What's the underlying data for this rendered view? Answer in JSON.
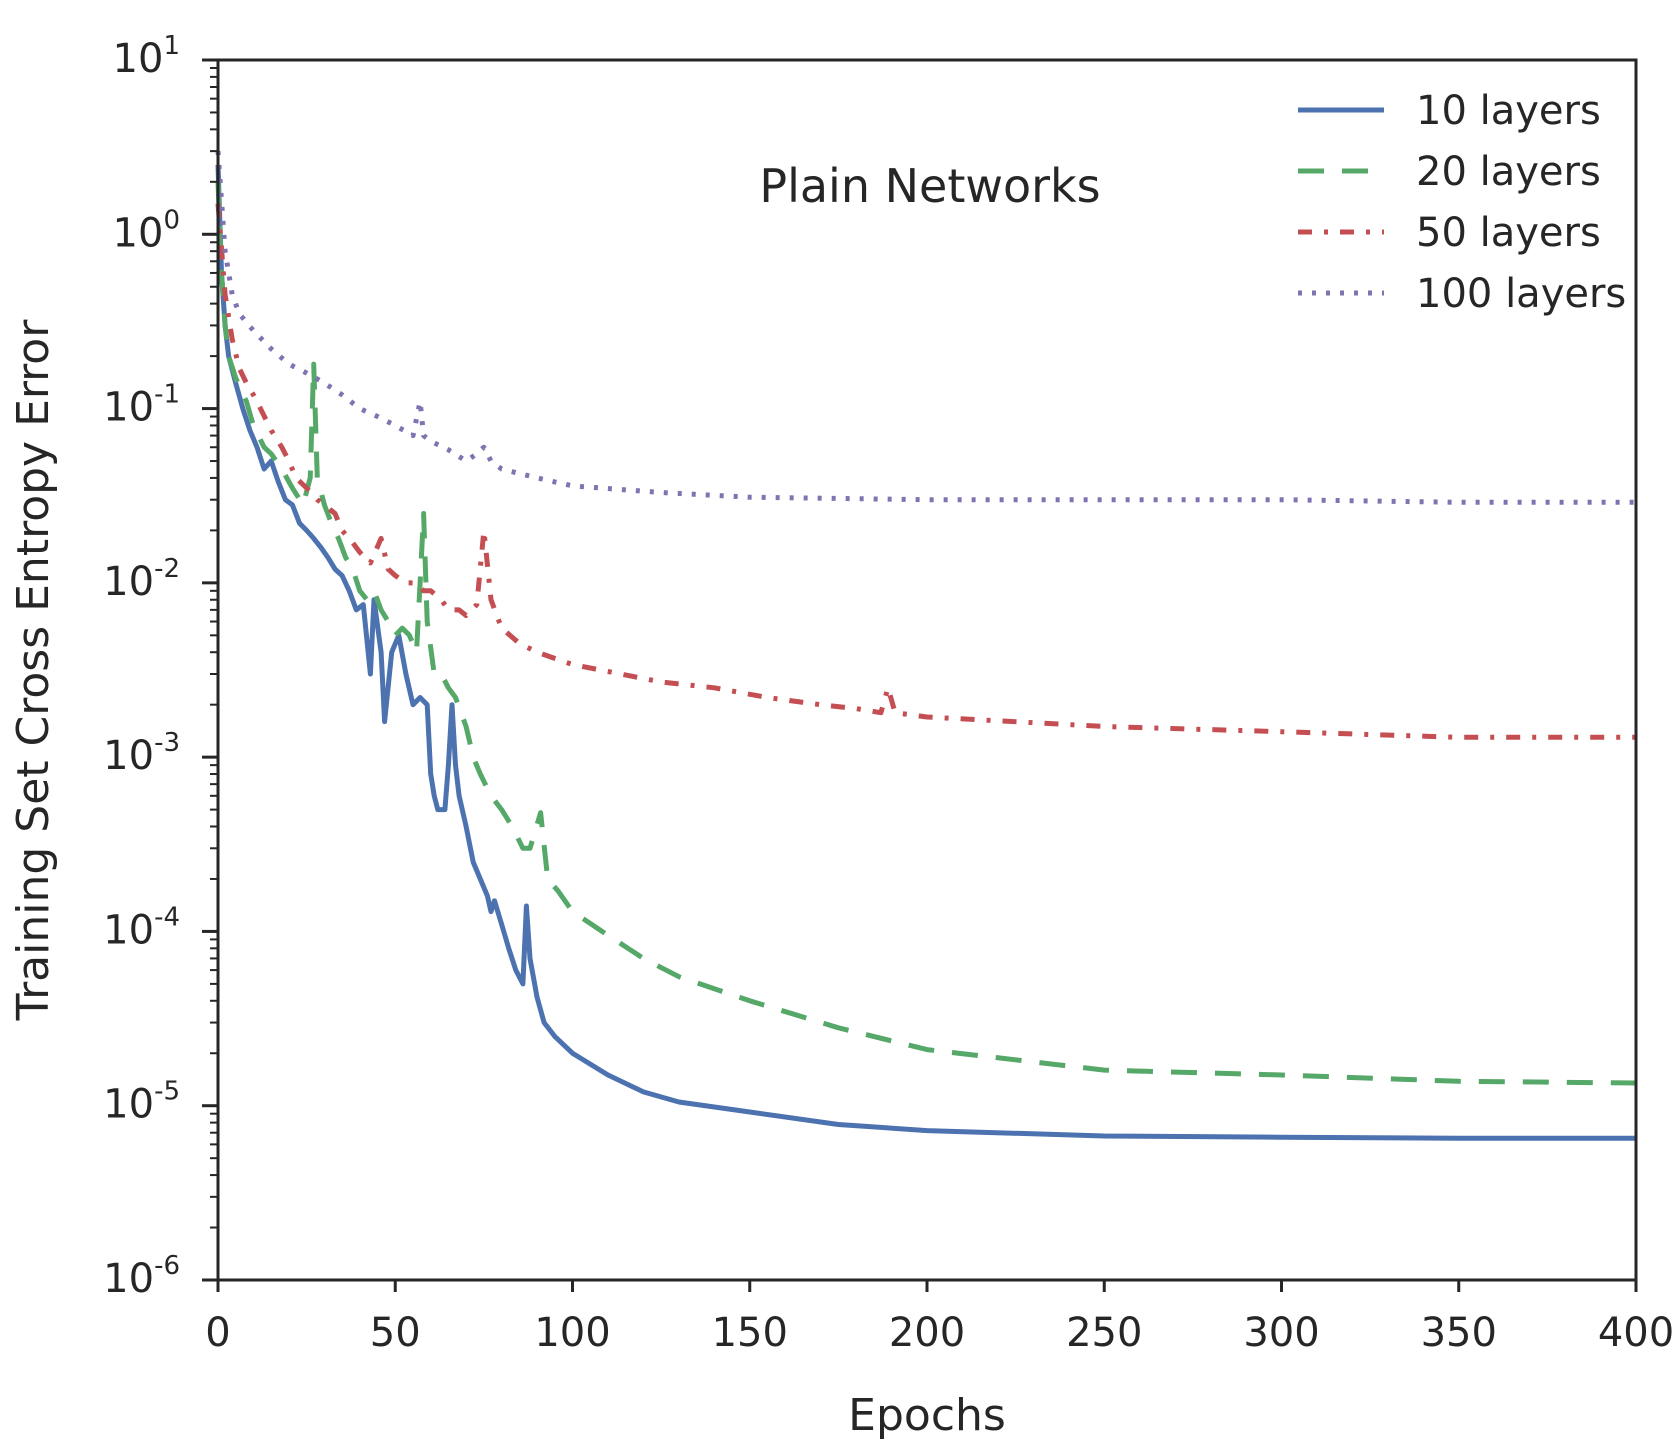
{
  "chart_data": {
    "type": "line",
    "annotation": "Plain Networks",
    "xlabel": "Epochs",
    "ylabel": "Training Set Cross Entropy Error",
    "xlim": [
      0,
      400
    ],
    "ylim": [
      1e-06,
      10
    ],
    "yscale": "log",
    "xticks": [
      0,
      50,
      100,
      150,
      200,
      250,
      300,
      350,
      400
    ],
    "yticks": [
      {
        "base": "10",
        "exp": "1",
        "value": 10
      },
      {
        "base": "10",
        "exp": "0",
        "value": 1
      },
      {
        "base": "10",
        "exp": "-1",
        "value": 0.1
      },
      {
        "base": "10",
        "exp": "-2",
        "value": 0.01
      },
      {
        "base": "10",
        "exp": "-3",
        "value": 0.001
      },
      {
        "base": "10",
        "exp": "-4",
        "value": 0.0001
      },
      {
        "base": "10",
        "exp": "-5",
        "value": 1e-05
      },
      {
        "base": "10",
        "exp": "-6",
        "value": 1e-06
      }
    ],
    "grid": false,
    "legend": "top-right",
    "series": [
      {
        "name": "10 layers",
        "color": "#4c72b0",
        "style": "solid",
        "points": [
          [
            0,
            2.5
          ],
          [
            1,
            0.6
          ],
          [
            2,
            0.3
          ],
          [
            3,
            0.2
          ],
          [
            5,
            0.14
          ],
          [
            7,
            0.1
          ],
          [
            9,
            0.075
          ],
          [
            11,
            0.06
          ],
          [
            13,
            0.045
          ],
          [
            15,
            0.05
          ],
          [
            17,
            0.038
          ],
          [
            19,
            0.03
          ],
          [
            21,
            0.028
          ],
          [
            23,
            0.022
          ],
          [
            25,
            0.02
          ],
          [
            27,
            0.018
          ],
          [
            29,
            0.016
          ],
          [
            31,
            0.014
          ],
          [
            33,
            0.012
          ],
          [
            35,
            0.011
          ],
          [
            37,
            0.009
          ],
          [
            39,
            0.007
          ],
          [
            41,
            0.0075
          ],
          [
            43,
            0.003
          ],
          [
            44,
            0.008
          ],
          [
            46,
            0.004
          ],
          [
            47,
            0.0016
          ],
          [
            49,
            0.004
          ],
          [
            51,
            0.005
          ],
          [
            53,
            0.003
          ],
          [
            55,
            0.002
          ],
          [
            57,
            0.0022
          ],
          [
            59,
            0.002
          ],
          [
            60,
            0.0008
          ],
          [
            61,
            0.0006
          ],
          [
            62,
            0.0005
          ],
          [
            64,
            0.0005
          ],
          [
            65,
            0.0009
          ],
          [
            66,
            0.002
          ],
          [
            67,
            0.0009
          ],
          [
            68,
            0.0006
          ],
          [
            70,
            0.0004
          ],
          [
            72,
            0.00025
          ],
          [
            74,
            0.0002
          ],
          [
            76,
            0.00016
          ],
          [
            77,
            0.00013
          ],
          [
            78,
            0.00015
          ],
          [
            80,
            0.00011
          ],
          [
            82,
            8e-05
          ],
          [
            84,
            6e-05
          ],
          [
            86,
            5e-05
          ],
          [
            87,
            0.00014
          ],
          [
            88,
            7e-05
          ],
          [
            90,
            4.2e-05
          ],
          [
            92,
            3e-05
          ],
          [
            95,
            2.5e-05
          ],
          [
            100,
            2e-05
          ],
          [
            110,
            1.5e-05
          ],
          [
            120,
            1.2e-05
          ],
          [
            130,
            1.05e-05
          ],
          [
            150,
            9.2e-06
          ],
          [
            175,
            7.8e-06
          ],
          [
            200,
            7.2e-06
          ],
          [
            250,
            6.7e-06
          ],
          [
            300,
            6.6e-06
          ],
          [
            350,
            6.5e-06
          ],
          [
            400,
            6.5e-06
          ]
        ]
      },
      {
        "name": "20 layers",
        "color": "#55a868",
        "style": "dashed",
        "points": [
          [
            0,
            2.0
          ],
          [
            1,
            0.6
          ],
          [
            2,
            0.3
          ],
          [
            3,
            0.2
          ],
          [
            5,
            0.15
          ],
          [
            8,
            0.11
          ],
          [
            10,
            0.08
          ],
          [
            13,
            0.06
          ],
          [
            15,
            0.055
          ],
          [
            18,
            0.045
          ],
          [
            21,
            0.035
          ],
          [
            24,
            0.028
          ],
          [
            26,
            0.04
          ],
          [
            27,
            0.18
          ],
          [
            28,
            0.04
          ],
          [
            30,
            0.028
          ],
          [
            32,
            0.022
          ],
          [
            34,
            0.018
          ],
          [
            36,
            0.014
          ],
          [
            38,
            0.012
          ],
          [
            40,
            0.009
          ],
          [
            42,
            0.008
          ],
          [
            44,
            0.009
          ],
          [
            46,
            0.007
          ],
          [
            48,
            0.006
          ],
          [
            50,
            0.005
          ],
          [
            52,
            0.0055
          ],
          [
            54,
            0.005
          ],
          [
            56,
            0.004
          ],
          [
            57,
            0.01
          ],
          [
            58,
            0.025
          ],
          [
            59,
            0.006
          ],
          [
            61,
            0.003
          ],
          [
            63,
            0.003
          ],
          [
            65,
            0.0025
          ],
          [
            67,
            0.0022
          ],
          [
            70,
            0.0015
          ],
          [
            72,
            0.001
          ],
          [
            74,
            0.0008
          ],
          [
            77,
            0.0006
          ],
          [
            80,
            0.0005
          ],
          [
            83,
            0.0004
          ],
          [
            86,
            0.0003
          ],
          [
            88,
            0.0003
          ],
          [
            91,
            0.00048
          ],
          [
            93,
            0.0002
          ],
          [
            96,
            0.00017
          ],
          [
            100,
            0.00013
          ],
          [
            110,
            9.5e-05
          ],
          [
            120,
            7e-05
          ],
          [
            130,
            5.5e-05
          ],
          [
            150,
            4e-05
          ],
          [
            175,
            2.8e-05
          ],
          [
            200,
            2.1e-05
          ],
          [
            250,
            1.6e-05
          ],
          [
            300,
            1.5e-05
          ],
          [
            350,
            1.38e-05
          ],
          [
            400,
            1.35e-05
          ]
        ]
      },
      {
        "name": "50 layers",
        "color": "#c44e52",
        "style": "dashdot",
        "points": [
          [
            0,
            1.5
          ],
          [
            2,
            0.45
          ],
          [
            4,
            0.25
          ],
          [
            6,
            0.17
          ],
          [
            8,
            0.14
          ],
          [
            10,
            0.12
          ],
          [
            12,
            0.1
          ],
          [
            15,
            0.075
          ],
          [
            18,
            0.06
          ],
          [
            20,
            0.05
          ],
          [
            22,
            0.04
          ],
          [
            25,
            0.035
          ],
          [
            28,
            0.03
          ],
          [
            30,
            0.028
          ],
          [
            33,
            0.025
          ],
          [
            35,
            0.02
          ],
          [
            38,
            0.017
          ],
          [
            40,
            0.015
          ],
          [
            43,
            0.013
          ],
          [
            46,
            0.018
          ],
          [
            48,
            0.012
          ],
          [
            50,
            0.011
          ],
          [
            53,
            0.01
          ],
          [
            56,
            0.01
          ],
          [
            58,
            0.009
          ],
          [
            60,
            0.009
          ],
          [
            63,
            0.008
          ],
          [
            65,
            0.007
          ],
          [
            68,
            0.007
          ],
          [
            70,
            0.0065
          ],
          [
            73,
            0.0075
          ],
          [
            75,
            0.02
          ],
          [
            77,
            0.008
          ],
          [
            80,
            0.0055
          ],
          [
            85,
            0.0045
          ],
          [
            90,
            0.004
          ],
          [
            100,
            0.0034
          ],
          [
            110,
            0.0031
          ],
          [
            125,
            0.0027
          ],
          [
            140,
            0.0025
          ],
          [
            155,
            0.0022
          ],
          [
            170,
            0.002
          ],
          [
            180,
            0.0019
          ],
          [
            187,
            0.0018
          ],
          [
            189,
            0.0025
          ],
          [
            191,
            0.0018
          ],
          [
            200,
            0.0017
          ],
          [
            250,
            0.0015
          ],
          [
            300,
            0.0014
          ],
          [
            350,
            0.0013
          ],
          [
            400,
            0.0013
          ]
        ]
      },
      {
        "name": "100 layers",
        "color": "#8172b2",
        "style": "dotted",
        "points": [
          [
            0,
            3.0
          ],
          [
            2,
            0.8
          ],
          [
            4,
            0.45
          ],
          [
            6,
            0.35
          ],
          [
            10,
            0.28
          ],
          [
            15,
            0.22
          ],
          [
            20,
            0.18
          ],
          [
            25,
            0.16
          ],
          [
            30,
            0.14
          ],
          [
            35,
            0.12
          ],
          [
            40,
            0.1
          ],
          [
            45,
            0.09
          ],
          [
            50,
            0.08
          ],
          [
            55,
            0.07
          ],
          [
            57,
            0.11
          ],
          [
            58,
            0.07
          ],
          [
            60,
            0.065
          ],
          [
            65,
            0.058
          ],
          [
            70,
            0.05
          ],
          [
            73,
            0.055
          ],
          [
            75,
            0.06
          ],
          [
            77,
            0.05
          ],
          [
            80,
            0.045
          ],
          [
            90,
            0.04
          ],
          [
            100,
            0.036
          ],
          [
            125,
            0.033
          ],
          [
            150,
            0.031
          ],
          [
            200,
            0.03
          ],
          [
            250,
            0.03
          ],
          [
            300,
            0.03
          ],
          [
            350,
            0.029
          ],
          [
            400,
            0.029
          ]
        ]
      }
    ]
  }
}
